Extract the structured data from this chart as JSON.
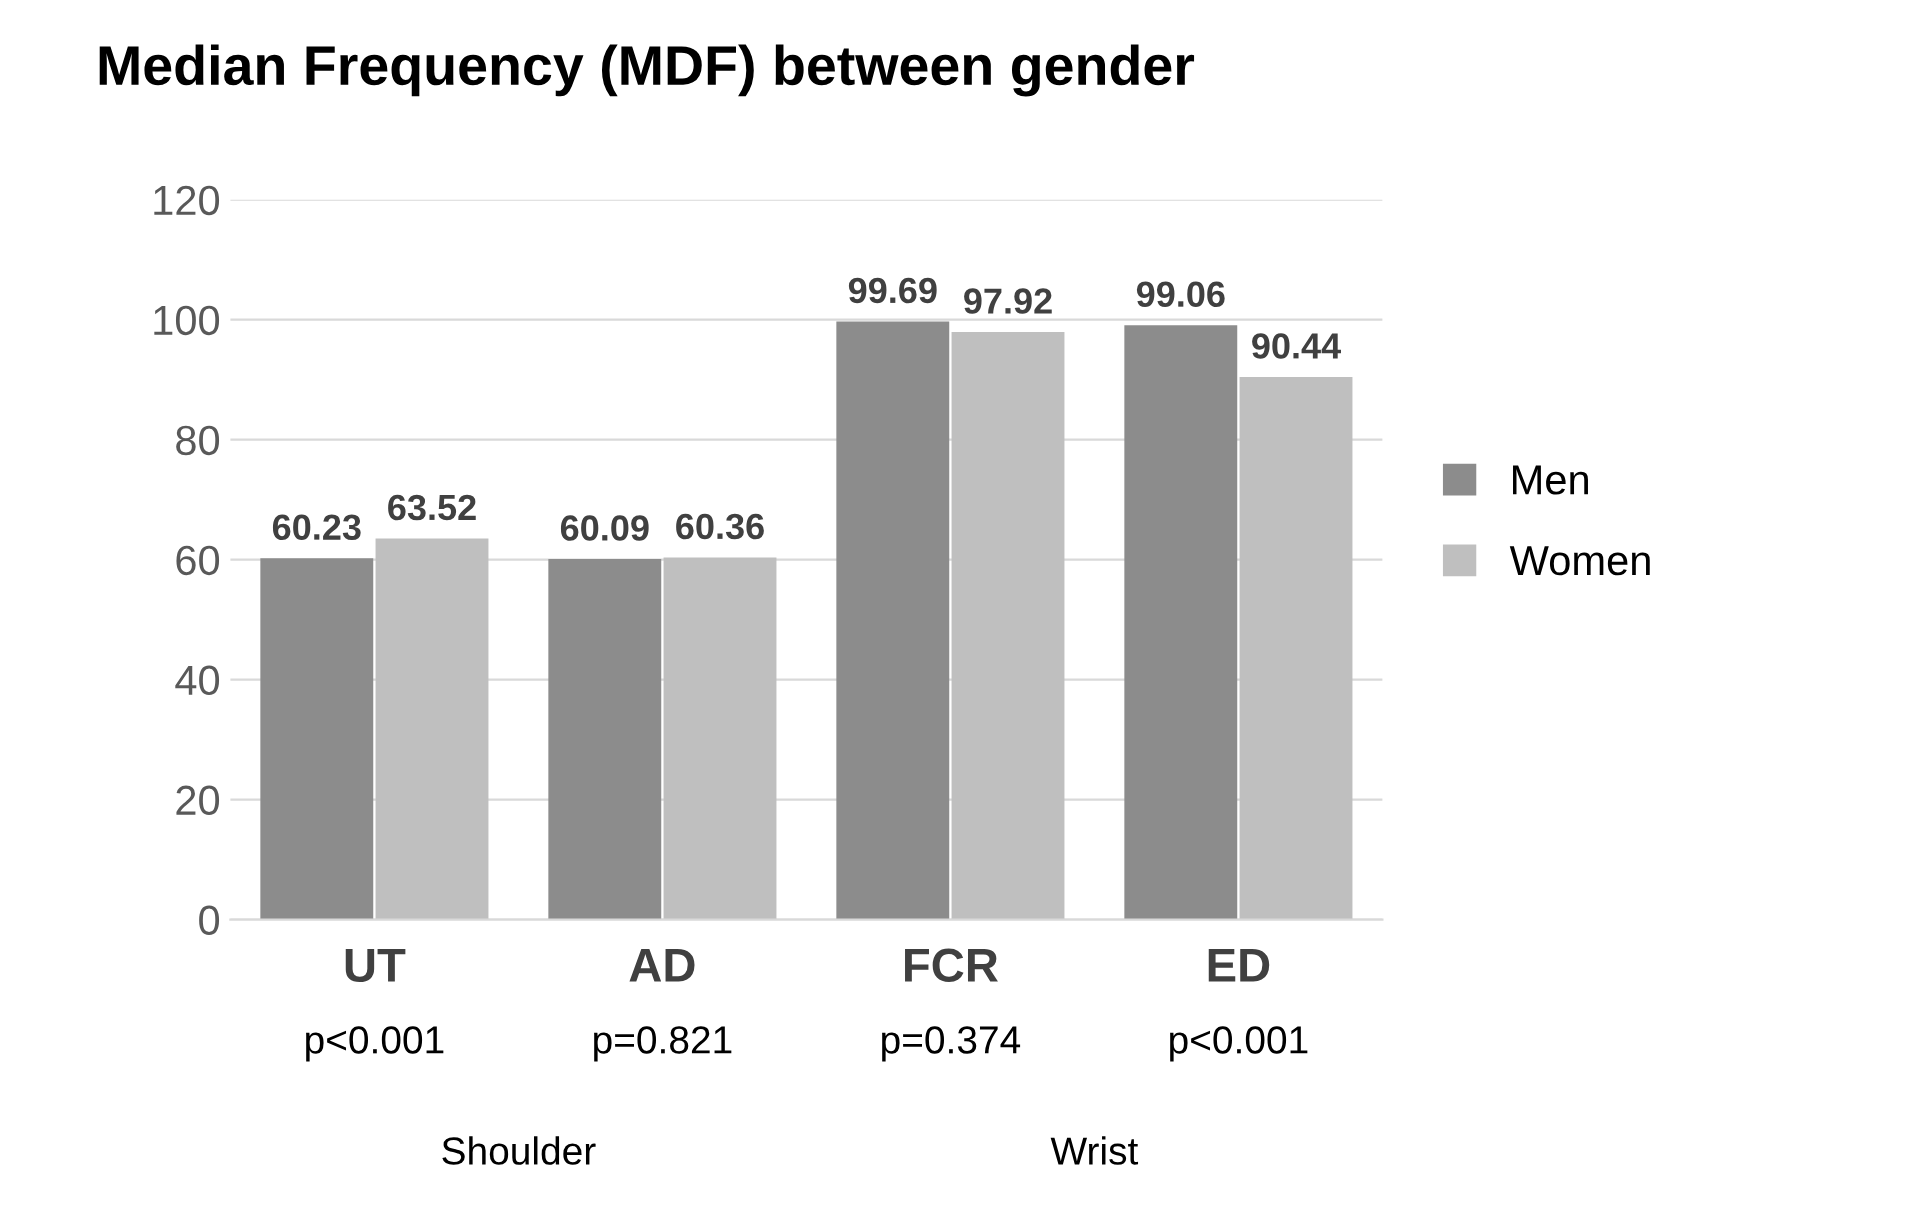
{
  "chart_data": {
    "type": "bar",
    "title": "Median Frequency (MDF) between gender",
    "categories": [
      "UT",
      "AD",
      "FCR",
      "ED"
    ],
    "series": [
      {
        "name": "Men",
        "color": "#8c8c8c",
        "values": [
          60.23,
          60.09,
          99.69,
          99.06
        ]
      },
      {
        "name": "Women",
        "color": "#bfbfbf",
        "values": [
          63.52,
          60.36,
          97.92,
          90.44
        ]
      }
    ],
    "ylim": [
      0,
      120
    ],
    "yticks": [
      0,
      20,
      40,
      60,
      80,
      100,
      120
    ],
    "grid": "y",
    "legend": "right",
    "data_labels": true,
    "annotations": [
      "p<0.001",
      "p=0.821",
      "p=0.374",
      "p<0.001",
      "Shoulder",
      "Wrist"
    ]
  }
}
